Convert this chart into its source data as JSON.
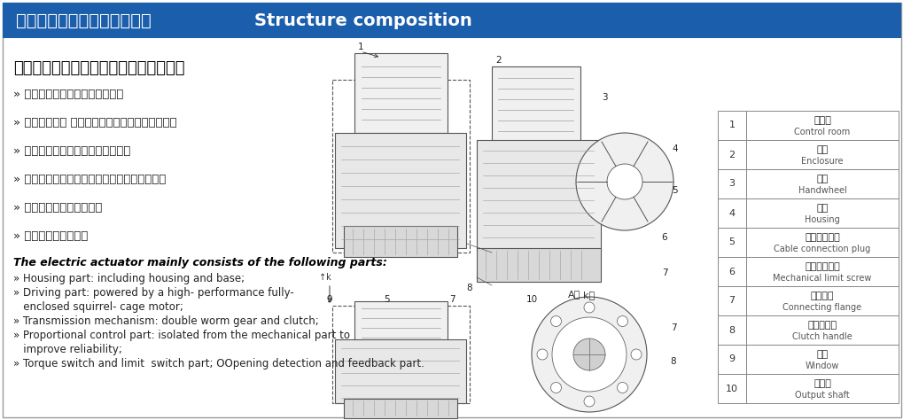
{
  "title_banner_text_zh": "防爆电动劢执行器的结构组成",
  "title_banner_text_en": "    Structure composition",
  "banner_bg": "#1B5EAB",
  "banner_text_color": "#FFFFFF",
  "bg_color": "#FFFFFF",
  "main_heading_zh": "防爆电动执行器主要由以下几部分组成：",
  "bullets_zh": [
    "» 壳体部分：包括外壳及底座部分",
    "» 驱动部分：以 高性能全封闭阻笼式电机为动力源",
    "» 传动机构：双蜗轮与离合器部分，",
    "» 比例控制部分：与机械部分分离，提高可靠性",
    "» 力矩开关与限位开关部分",
    "» 开度检测与反馈部分"
  ],
  "heading_en": "The electric actuator mainly consists of the following parts:",
  "bullets_en": [
    "» Housing part: including housing and base;",
    "» Driving part: powered by a high- performance fully-",
    "   enclosed squirrel- cage motor;",
    "» Transmission mechanism: double worm gear and clutch;",
    "» Proportional control part: isolated from the mechanical part to",
    "   improve reliability;",
    "» Torque switch and limit  switch part; OOpening detection and feedback part."
  ],
  "table_items": [
    [
      1,
      "控制室",
      "Control room"
    ],
    [
      2,
      "外罩",
      "Enclosure"
    ],
    [
      3,
      "手轮",
      "Handwheel"
    ],
    [
      4,
      "壳体",
      "Housing"
    ],
    [
      5,
      "线缆接入插头",
      "Cable connection plug"
    ],
    [
      6,
      "机械限位螺钉",
      "Mechanical limit screw"
    ],
    [
      7,
      "连接法兰",
      "Connecting flange"
    ],
    [
      8,
      "离合器手柄",
      "Clutch handle"
    ],
    [
      9,
      "视窗",
      "Window"
    ],
    [
      10,
      "输出轴",
      "Output shaft"
    ]
  ],
  "table_border": "#888888",
  "outer_border": "#999999"
}
